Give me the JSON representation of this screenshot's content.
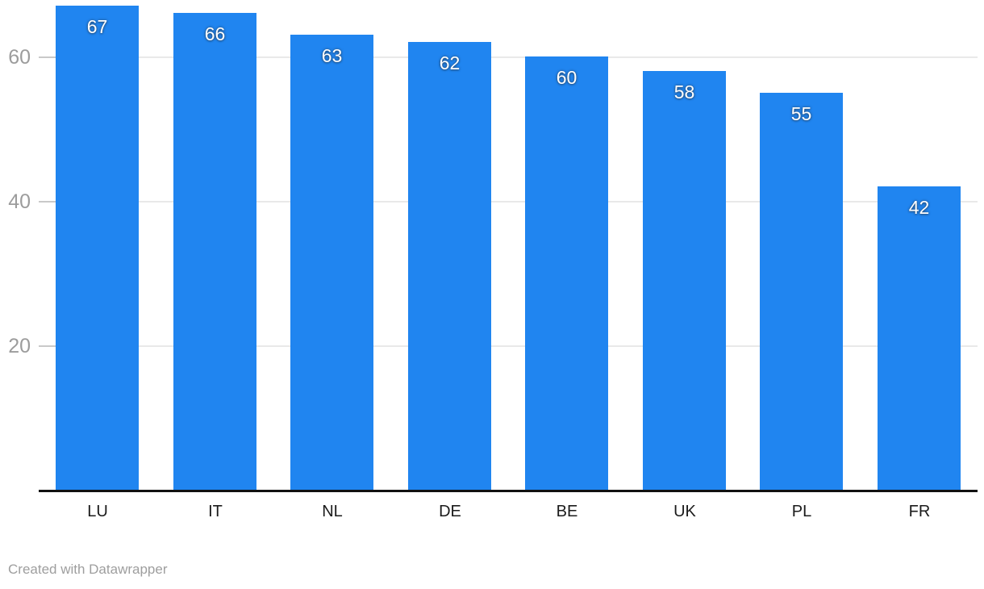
{
  "chart_data": {
    "type": "bar",
    "categories": [
      "LU",
      "IT",
      "NL",
      "DE",
      "BE",
      "UK",
      "PL",
      "FR"
    ],
    "values": [
      67,
      66,
      63,
      62,
      60,
      58,
      55,
      42
    ],
    "value_labels": [
      "67",
      "66",
      "63",
      "62",
      "60",
      "58",
      "55",
      "42"
    ],
    "title": "",
    "xlabel": "",
    "ylabel": "",
    "yticks": [
      20,
      40,
      60
    ],
    "ylim": [
      0,
      67.9
    ],
    "grid": true,
    "legend": "none",
    "bar_color": "#2085f0",
    "value_label_color": "#ffffff",
    "tick_label_color": "#9c9c9c",
    "category_label_color": "#1b1b1b",
    "gridline_color": "#e9e9e9",
    "axis_line_color": "#111111"
  },
  "footer": {
    "attribution": "Created with Datawrapper"
  }
}
